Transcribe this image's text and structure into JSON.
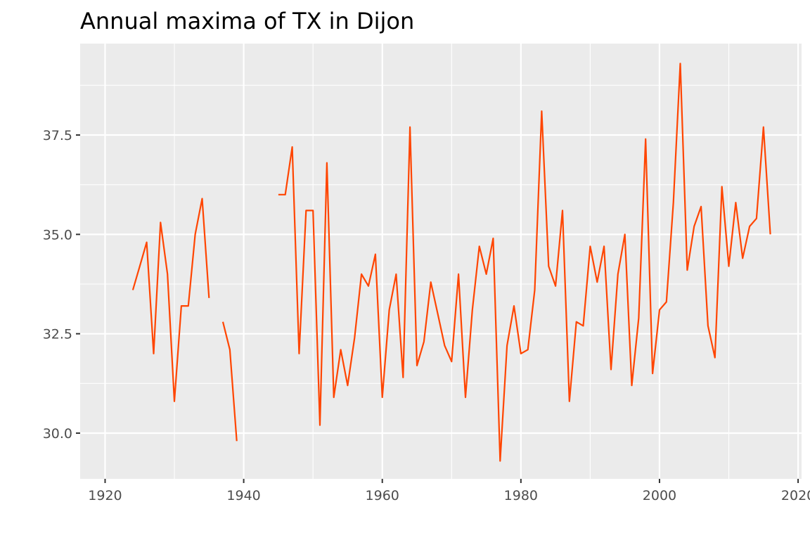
{
  "chart_data": {
    "type": "line",
    "title": "Annual maxima of TX in Dijon",
    "xlabel": "",
    "ylabel": "",
    "xlim": [
      1916.4,
      2020.5
    ],
    "ylim": [
      28.85,
      39.8
    ],
    "x_ticks": [
      1920,
      1940,
      1960,
      1980,
      2000,
      2020
    ],
    "x_tick_labels": [
      "1920",
      "1940",
      "1960",
      "1980",
      "2000",
      "2020"
    ],
    "y_ticks": [
      30.0,
      32.5,
      35.0,
      37.5
    ],
    "y_tick_labels": [
      "30.0",
      "32.5",
      "35.0",
      "37.5"
    ],
    "x_minor_ticks": [
      1930,
      1950,
      1970,
      1990,
      2010
    ],
    "y_minor_ticks": [
      31.25,
      33.75,
      36.25,
      38.75
    ],
    "grid": true,
    "legend": "none",
    "colors": {
      "line": "#ff4500",
      "panel": "#ebebeb",
      "grid": "#ffffff",
      "axis_tick": "#333333"
    },
    "series": [
      {
        "segments": [
          {
            "x": [
              1924,
              1925,
              1926,
              1927,
              1928,
              1929,
              1930,
              1931,
              1932,
              1933,
              1934,
              1935
            ],
            "y": [
              33.6,
              34.2,
              34.8,
              32.0,
              35.3,
              34.0,
              30.8,
              33.2,
              33.2,
              35.0,
              35.9,
              33.4
            ]
          },
          {
            "x": [
              1937,
              1938,
              1939
            ],
            "y": [
              32.8,
              32.1,
              29.8
            ]
          },
          {
            "x": [
              1945,
              1946,
              1947,
              1948,
              1949,
              1950,
              1951,
              1952,
              1953,
              1954,
              1955,
              1956,
              1957,
              1958,
              1959,
              1960,
              1961,
              1962,
              1963,
              1964,
              1965,
              1966,
              1967,
              1968,
              1969,
              1970,
              1971,
              1972,
              1973,
              1974,
              1975,
              1976,
              1977,
              1978,
              1979,
              1980,
              1981,
              1982,
              1983,
              1984,
              1985,
              1986,
              1987,
              1988,
              1989,
              1990,
              1991,
              1992,
              1993,
              1994,
              1995,
              1996,
              1997,
              1998,
              1999,
              2000,
              2001,
              2002,
              2003,
              2004,
              2005,
              2006,
              2007,
              2008,
              2009,
              2010,
              2011,
              2012,
              2013,
              2014,
              2015,
              2016
            ],
            "y": [
              36.0,
              36.0,
              37.2,
              32.0,
              35.6,
              35.6,
              30.2,
              36.8,
              30.9,
              32.1,
              31.2,
              32.4,
              34.0,
              33.7,
              34.5,
              30.9,
              33.1,
              34.0,
              31.4,
              37.7,
              31.7,
              32.3,
              33.8,
              33.0,
              32.2,
              31.8,
              34.0,
              30.9,
              33.1,
              34.7,
              34.0,
              34.9,
              29.3,
              32.2,
              33.2,
              32.0,
              32.1,
              33.6,
              38.1,
              34.2,
              33.7,
              35.6,
              30.8,
              32.8,
              32.7,
              34.7,
              33.8,
              34.7,
              31.6,
              34.0,
              35.0,
              31.2,
              32.9,
              37.4,
              31.5,
              33.1,
              33.3,
              35.8,
              39.3,
              34.1,
              35.2,
              35.7,
              32.7,
              31.9,
              36.2,
              34.2,
              35.8,
              34.4,
              35.2,
              35.4,
              37.7,
              35.0
            ]
          }
        ]
      }
    ]
  }
}
